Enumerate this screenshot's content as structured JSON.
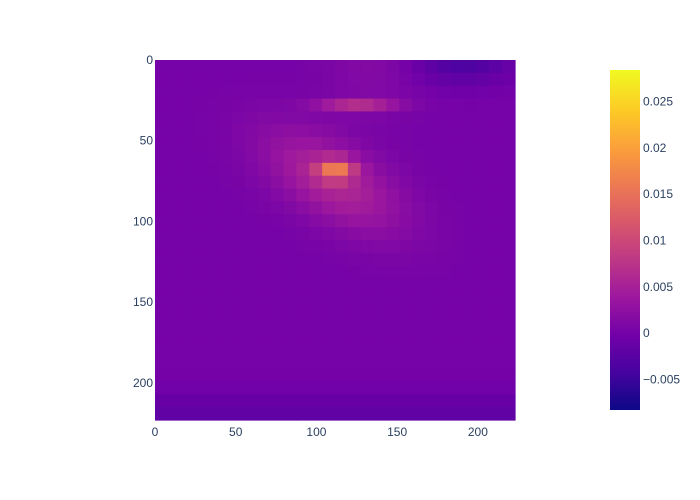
{
  "chart_data": {
    "type": "heatmap",
    "title": "",
    "xlabel": "",
    "ylabel": "",
    "xlim": [
      0,
      223
    ],
    "ylim": [
      223,
      0
    ],
    "y_reversed": true,
    "x_ticks": [
      0,
      50,
      100,
      150,
      200
    ],
    "y_ticks": [
      0,
      50,
      100,
      150,
      200
    ],
    "colorbar": {
      "colorscale": "plasma",
      "zmin": -0.0083,
      "zmax": 0.0284,
      "ticks": [
        -0.005,
        0,
        0.005,
        0.01,
        0.015,
        0.02,
        0.025
      ],
      "tick_labels": [
        "−0.005",
        "0",
        "0.005",
        "0.01",
        "0.015",
        "0.02",
        "0.025"
      ]
    },
    "grid_shape": [
      28,
      28
    ],
    "description_values": {
      "background": 0.0,
      "bright_region_center": [
        105,
        70
      ],
      "peak": 0.024
    }
  }
}
